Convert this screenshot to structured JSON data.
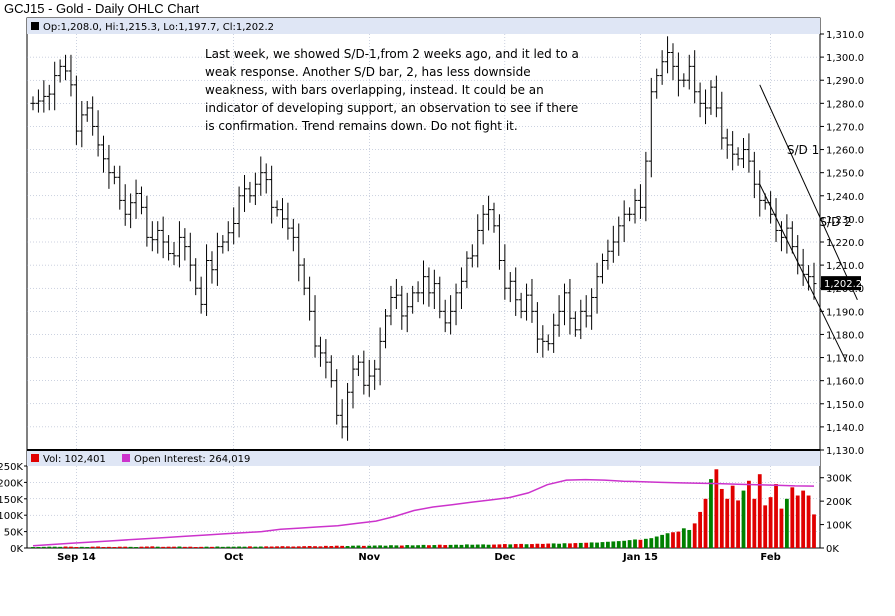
{
  "title": "GCJ15 - Gold - Daily OHLC Chart",
  "ohlc_readout": "Op:1,208.0, Hi:1,215.3, Lo:1,197.7, Cl:1,202.2",
  "commentary": "Last week, we showed S/D-1,from 2 weeks ago, and it led to a weak response.  Another S/D bar, 2, has less downside weakness, with bars overlapping, instead.  It could be an indicator of developing support, an observation to see if there is confirmation.  Trend remains down.  Do not fight it.",
  "annotations": [
    "S/D 1",
    "S/D 2"
  ],
  "last_price_label": "1,202.2",
  "colors": {
    "price_bar": "#000000",
    "volume_up": "#008000",
    "volume_down": "#e00000",
    "open_interest": "#cc33cc",
    "header_band": "#dfe6f5",
    "grid": "#9aa4c0"
  },
  "chart_data": [
    {
      "type": "ohlc",
      "title": "GCJ15 - Gold - Daily OHLC Chart",
      "ylim": [
        1130,
        1310
      ],
      "yticks": [
        "1,130.0",
        "1,140.0",
        "1,150.0",
        "1,160.0",
        "1,170.0",
        "1,180.0",
        "1,190.0",
        "1,200.0",
        "1,210.0",
        "1,220.0",
        "1,230.0",
        "1,240.0",
        "1,250.0",
        "1,260.0",
        "1,270.0",
        "1,280.0",
        "1,290.0",
        "1,300.0",
        "1,310.0"
      ],
      "yticks_values": [
        1130,
        1140,
        1150,
        1160,
        1170,
        1180,
        1190,
        1200,
        1210,
        1220,
        1230,
        1240,
        1250,
        1260,
        1270,
        1280,
        1290,
        1300,
        1310
      ],
      "xticks": [
        "Sep 14",
        "Oct",
        "Nov",
        "Dec",
        "Jan 15",
        "Feb"
      ],
      "xtick_index": [
        8,
        37,
        62,
        87,
        112,
        136
      ],
      "grid": true,
      "last_bar": {
        "open": 1208.0,
        "high": 1215.3,
        "low": 1197.7,
        "close": 1202.2
      },
      "trendlines": [
        {
          "label": "upper",
          "from": [
            134,
            1288
          ],
          "to": [
            152,
            1195
          ]
        },
        {
          "label": "lower",
          "from": [
            134,
            1245
          ],
          "to": [
            150,
            1168
          ]
        }
      ],
      "close": [
        1280,
        1281,
        1283,
        1284,
        1292,
        1296,
        1294,
        1288,
        1268,
        1275,
        1278,
        1270,
        1262,
        1256,
        1250,
        1248,
        1238,
        1232,
        1237,
        1241,
        1235,
        1222,
        1221,
        1225,
        1220,
        1215,
        1214,
        1222,
        1218,
        1210,
        1200,
        1193,
        1212,
        1208,
        1218,
        1220,
        1224,
        1228,
        1240,
        1243,
        1240,
        1245,
        1250,
        1247,
        1235,
        1234,
        1230,
        1226,
        1222,
        1210,
        1200,
        1190,
        1175,
        1172,
        1168,
        1160,
        1145,
        1140,
        1155,
        1165,
        1168,
        1158,
        1162,
        1165,
        1177,
        1188,
        1196,
        1197,
        1188,
        1192,
        1198,
        1198,
        1205,
        1198,
        1202,
        1190,
        1185,
        1190,
        1198,
        1203,
        1213,
        1214,
        1225,
        1232,
        1234,
        1227,
        1212,
        1200,
        1203,
        1195,
        1190,
        1197,
        1190,
        1178,
        1177,
        1176,
        1184,
        1190,
        1198,
        1187,
        1182,
        1190,
        1188,
        1196,
        1205,
        1212,
        1216,
        1220,
        1227,
        1232,
        1232,
        1238,
        1235,
        1255,
        1285,
        1292,
        1298,
        1302,
        1296,
        1290,
        1290,
        1296,
        1285,
        1280,
        1278,
        1287,
        1278,
        1265,
        1262,
        1258,
        1256,
        1260,
        1255,
        1245,
        1238,
        1237,
        1232,
        1225,
        1222,
        1226,
        1218,
        1210,
        1206,
        1205,
        1202
      ]
    },
    {
      "type": "bar",
      "title": "Vol: 102,401",
      "ylim": [
        0,
        250000
      ],
      "yticks": [
        "0K",
        "50K",
        "100K",
        "150K",
        "200K",
        "250K"
      ],
      "series": [
        {
          "name": "Vol: 102,401",
          "values": [
            3000,
            3000,
            3500,
            4000,
            4000,
            3500,
            4500,
            4000,
            3000,
            3500,
            3000,
            4000,
            4500,
            3000,
            3500,
            3000,
            4000,
            4000,
            3500,
            3000,
            4000,
            4500,
            5000,
            4000,
            3500,
            4000,
            4000,
            4500,
            3500,
            4000,
            3000,
            3500,
            4000,
            3500,
            4500,
            3500,
            4000,
            4000,
            4500,
            4000,
            5000,
            4000,
            4500,
            5000,
            4500,
            5000,
            5500,
            5000,
            4500,
            5000,
            5500,
            6000,
            5500,
            5000,
            6500,
            6000,
            7000,
            6500,
            6000,
            7000,
            7500,
            6500,
            7000,
            7500,
            8000,
            7000,
            8500,
            8000,
            7500,
            9000,
            8000,
            8500,
            9500,
            8500,
            9000,
            10000,
            9000,
            9500,
            10000,
            9500,
            11000,
            10000,
            10500,
            11000,
            10000,
            10500,
            11000,
            12000,
            11000,
            12000,
            12500,
            11500,
            12000,
            13000,
            12500,
            13500,
            14000,
            13000,
            14500,
            14000,
            15000,
            15500,
            16000,
            17000,
            16500,
            18000,
            19000,
            20000,
            21000,
            22000,
            24000,
            26000,
            25000,
            28000,
            30000,
            35000,
            40000,
            45000,
            48000,
            50000,
            60000,
            55000,
            75000,
            110000,
            150000,
            210000,
            240000,
            180000,
            150000,
            190000,
            145000,
            175000,
            205000,
            150000,
            225000,
            130000,
            155000,
            195000,
            120000,
            150000,
            185000,
            160000,
            175000,
            160000,
            102401
          ]
        }
      ]
    },
    {
      "type": "line",
      "title": "Open Interest: 264,019",
      "ylim": [
        0,
        350000
      ],
      "yticks": [
        "0K",
        "100K",
        "200K",
        "300K"
      ],
      "series": [
        {
          "name": "Open Interest: 264,019",
          "values": [
            10000,
            15000,
            20000,
            25000,
            30000,
            35000,
            40000,
            45000,
            50000,
            55000,
            60000,
            65000,
            70000,
            80000,
            85000,
            90000,
            95000,
            105000,
            115000,
            135000,
            160000,
            175000,
            185000,
            195000,
            205000,
            215000,
            235000,
            270000,
            290000,
            292000,
            290000,
            285000,
            283000,
            280000,
            278000,
            276000,
            275000,
            272000,
            270000,
            268000,
            265000,
            264019
          ]
        }
      ]
    }
  ]
}
